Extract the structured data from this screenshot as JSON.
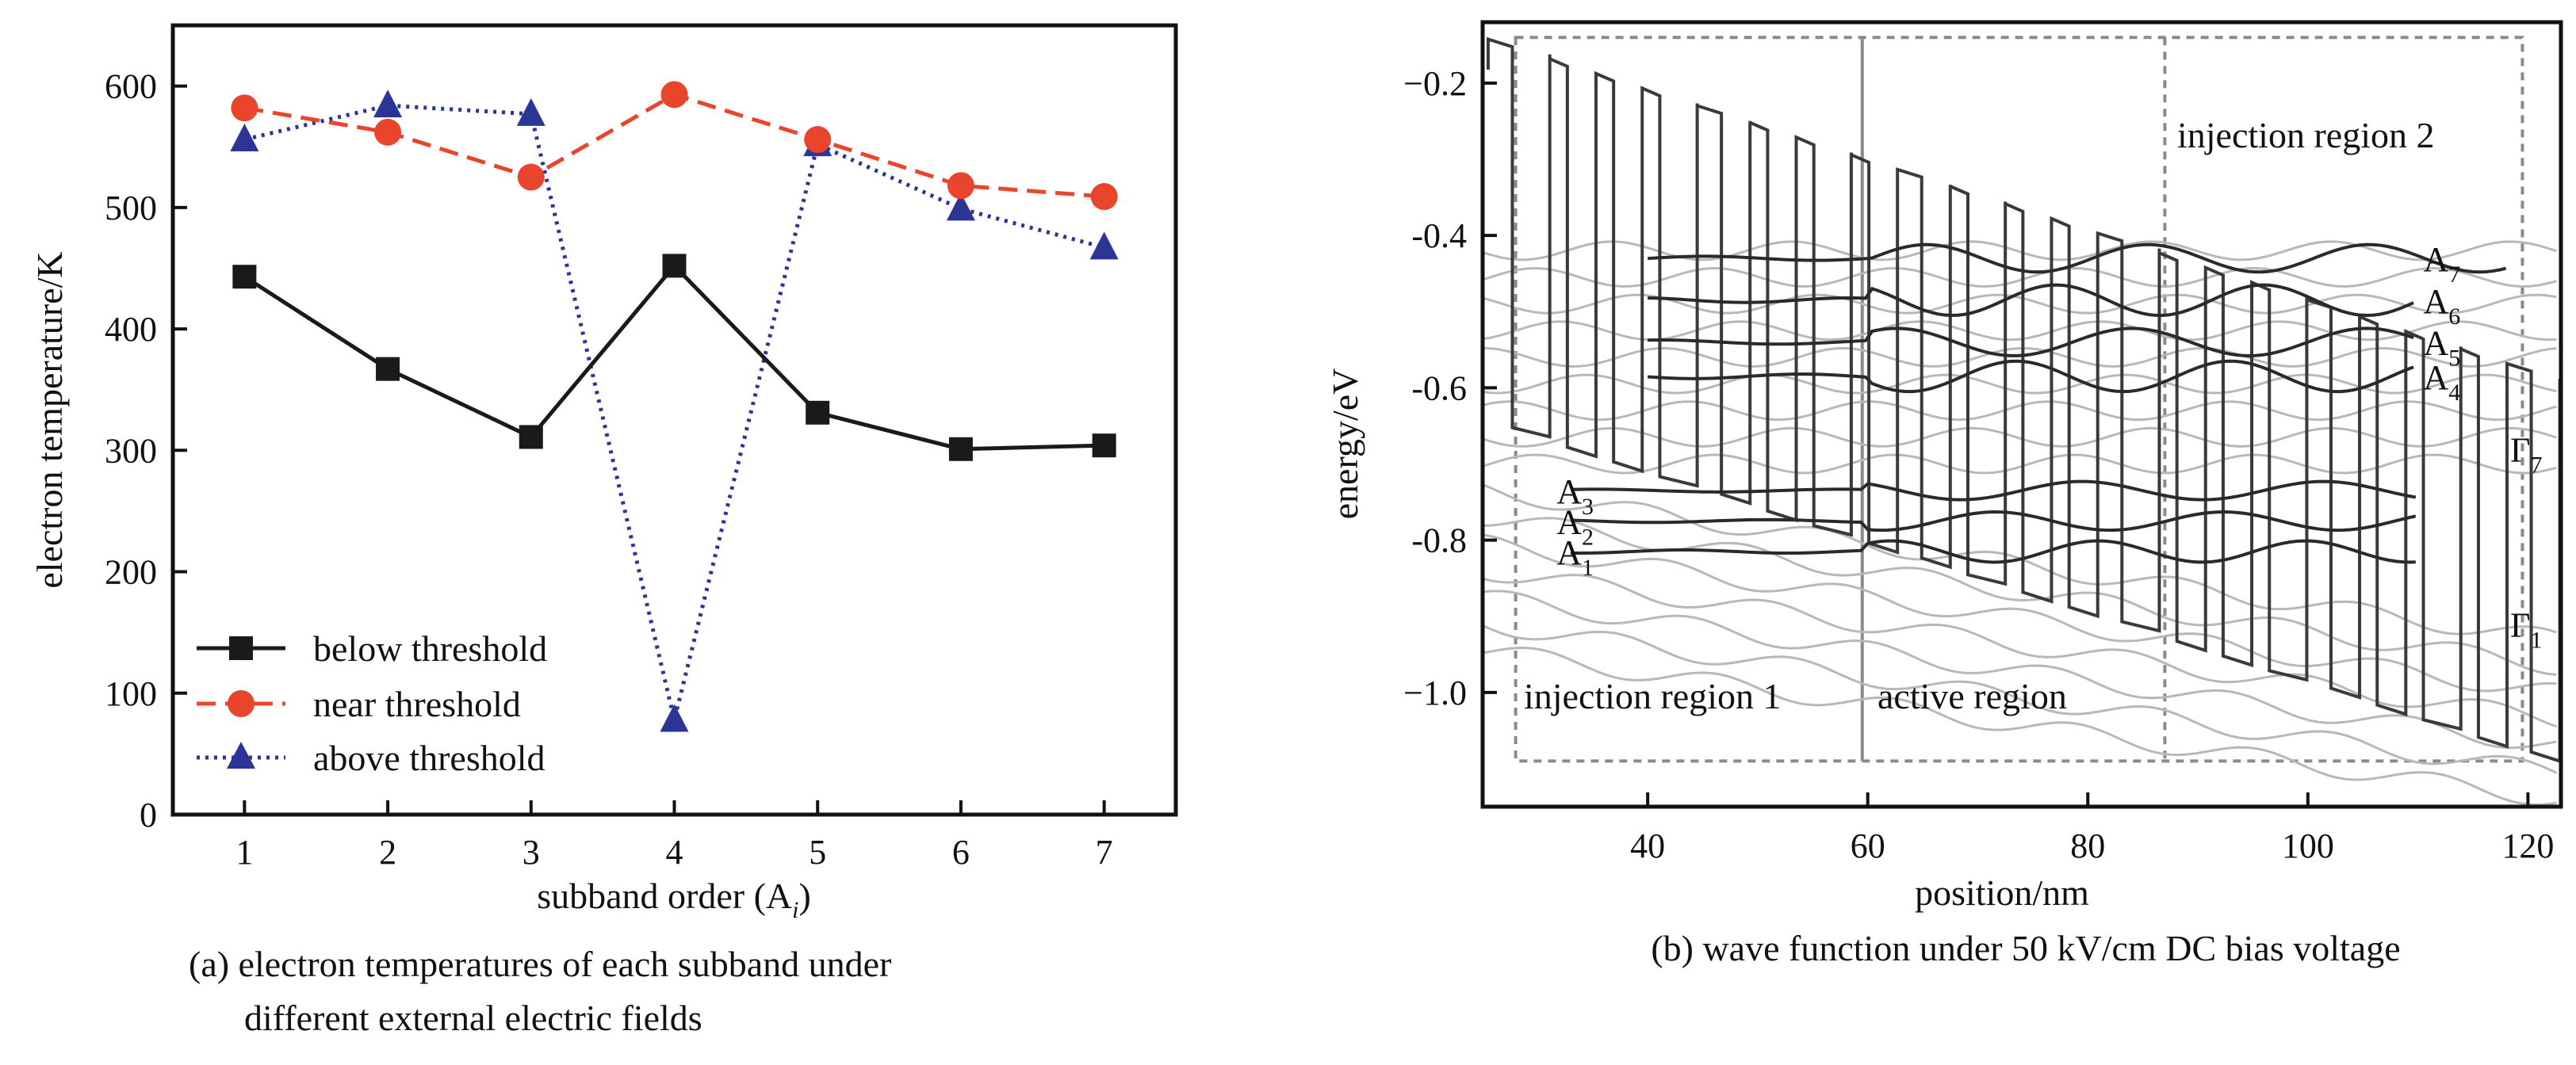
{
  "colors": {
    "axes": "#111111",
    "series_below": "#1a1a1a",
    "series_near": "#e8452c",
    "series_above": "#2b3595",
    "profile": "#3a3a3a",
    "wave_dark": "#2a2a2a",
    "wave_light": "#b8b8b8",
    "region_box": "#8a8a8a"
  },
  "chart_data": [
    {
      "type": "line",
      "xlabel": "subband order (A",
      "xlabel_sub": "i",
      "xlabel_close": ")",
      "ylabel": "electron temperature/K",
      "xlim": [
        0.5,
        7.5
      ],
      "ylim": [
        0,
        650
      ],
      "x": [
        1,
        2,
        3,
        4,
        5,
        6,
        7
      ],
      "x_ticks": [
        "1",
        "2",
        "3",
        "4",
        "5",
        "6",
        "7"
      ],
      "y_ticks": [
        "0",
        "100",
        "200",
        "300",
        "400",
        "500",
        "600"
      ],
      "y_tick_values": [
        0,
        100,
        200,
        300,
        400,
        500,
        600
      ],
      "legend_position": "bottom-left",
      "series": [
        {
          "name": "below threshold",
          "marker": "square",
          "line": "solid",
          "values": [
            443,
            367,
            311,
            452,
            331,
            301,
            304
          ]
        },
        {
          "name": "near threshold",
          "marker": "circle",
          "line": "dashed",
          "values": [
            582,
            562,
            525,
            593,
            556,
            518,
            509
          ]
        },
        {
          "name": "above threshold",
          "marker": "triangle",
          "line": "dotted",
          "values": [
            556,
            584,
            577,
            78,
            552,
            499,
            467
          ]
        }
      ],
      "caption_line1": "(a) electron temperatures of each subband under",
      "caption_line2": "different external electric fields"
    },
    {
      "type": "line",
      "xlabel": "position/nm",
      "ylabel": "energy/eV",
      "xlim": [
        25,
        123
      ],
      "ylim": [
        -1.15,
        -0.12
      ],
      "x_ticks": [
        "40",
        "60",
        "80",
        "100",
        "120"
      ],
      "x_tick_values": [
        40,
        60,
        80,
        100,
        120
      ],
      "y_ticks": [
        "−0.2",
        "-0.4",
        "-0.6",
        "-0.8",
        "−1.0"
      ],
      "y_tick_values": [
        -0.2,
        -0.4,
        -0.6,
        -0.8,
        -1.0
      ],
      "region_boundaries_nm": [
        59.5,
        87
      ],
      "region_labels": {
        "injection1": "injection region 1",
        "active": "active region",
        "injection2": "injection region 2"
      },
      "state_labels": [
        {
          "base": "A",
          "sub": "7",
          "side": "right",
          "energy": -0.43
        },
        {
          "base": "A",
          "sub": "6",
          "side": "right",
          "energy": -0.485
        },
        {
          "base": "A",
          "sub": "5",
          "side": "right",
          "energy": -0.54
        },
        {
          "base": "A",
          "sub": "4",
          "side": "right",
          "energy": -0.585
        },
        {
          "base": "A",
          "sub": "3",
          "side": "left",
          "energy": -0.735
        },
        {
          "base": "A",
          "sub": "2",
          "side": "left",
          "energy": -0.775
        },
        {
          "base": "A",
          "sub": "1",
          "side": "left",
          "energy": -0.815
        },
        {
          "base": "Γ",
          "sub": "7",
          "side": "far-right",
          "energy": -0.68
        },
        {
          "base": "Γ",
          "sub": "1",
          "side": "far-right",
          "energy": -0.91
        }
      ],
      "caption": "(b) wave function under 50 kV/cm DC bias voltage"
    }
  ]
}
